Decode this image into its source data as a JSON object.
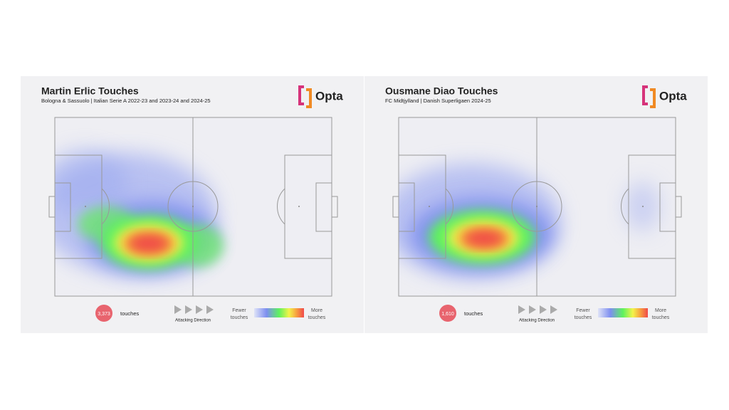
{
  "panels": [
    {
      "title": "Martin Erlic Touches",
      "subtitle": "Bologna & Sassuolo | Italian Serie A 2022-23 and 2023-24 and 2024-25",
      "brand": "Opta",
      "touches": "3,373",
      "touches_label": "touches",
      "direction": "Attacking Direction",
      "legend_low": [
        "Fewer",
        "touches"
      ],
      "legend_high": [
        "More",
        "touches"
      ]
    },
    {
      "title": "Ousmane Diao Touches",
      "subtitle": "FC Midtjylland | Danish Superligaen 2024-25",
      "brand": "Opta",
      "touches": "1,610",
      "touches_label": "touches",
      "direction": "Attacking Direction",
      "legend_low": [
        "Fewer",
        "touches"
      ],
      "legend_high": [
        "More",
        "touches"
      ]
    }
  ]
}
